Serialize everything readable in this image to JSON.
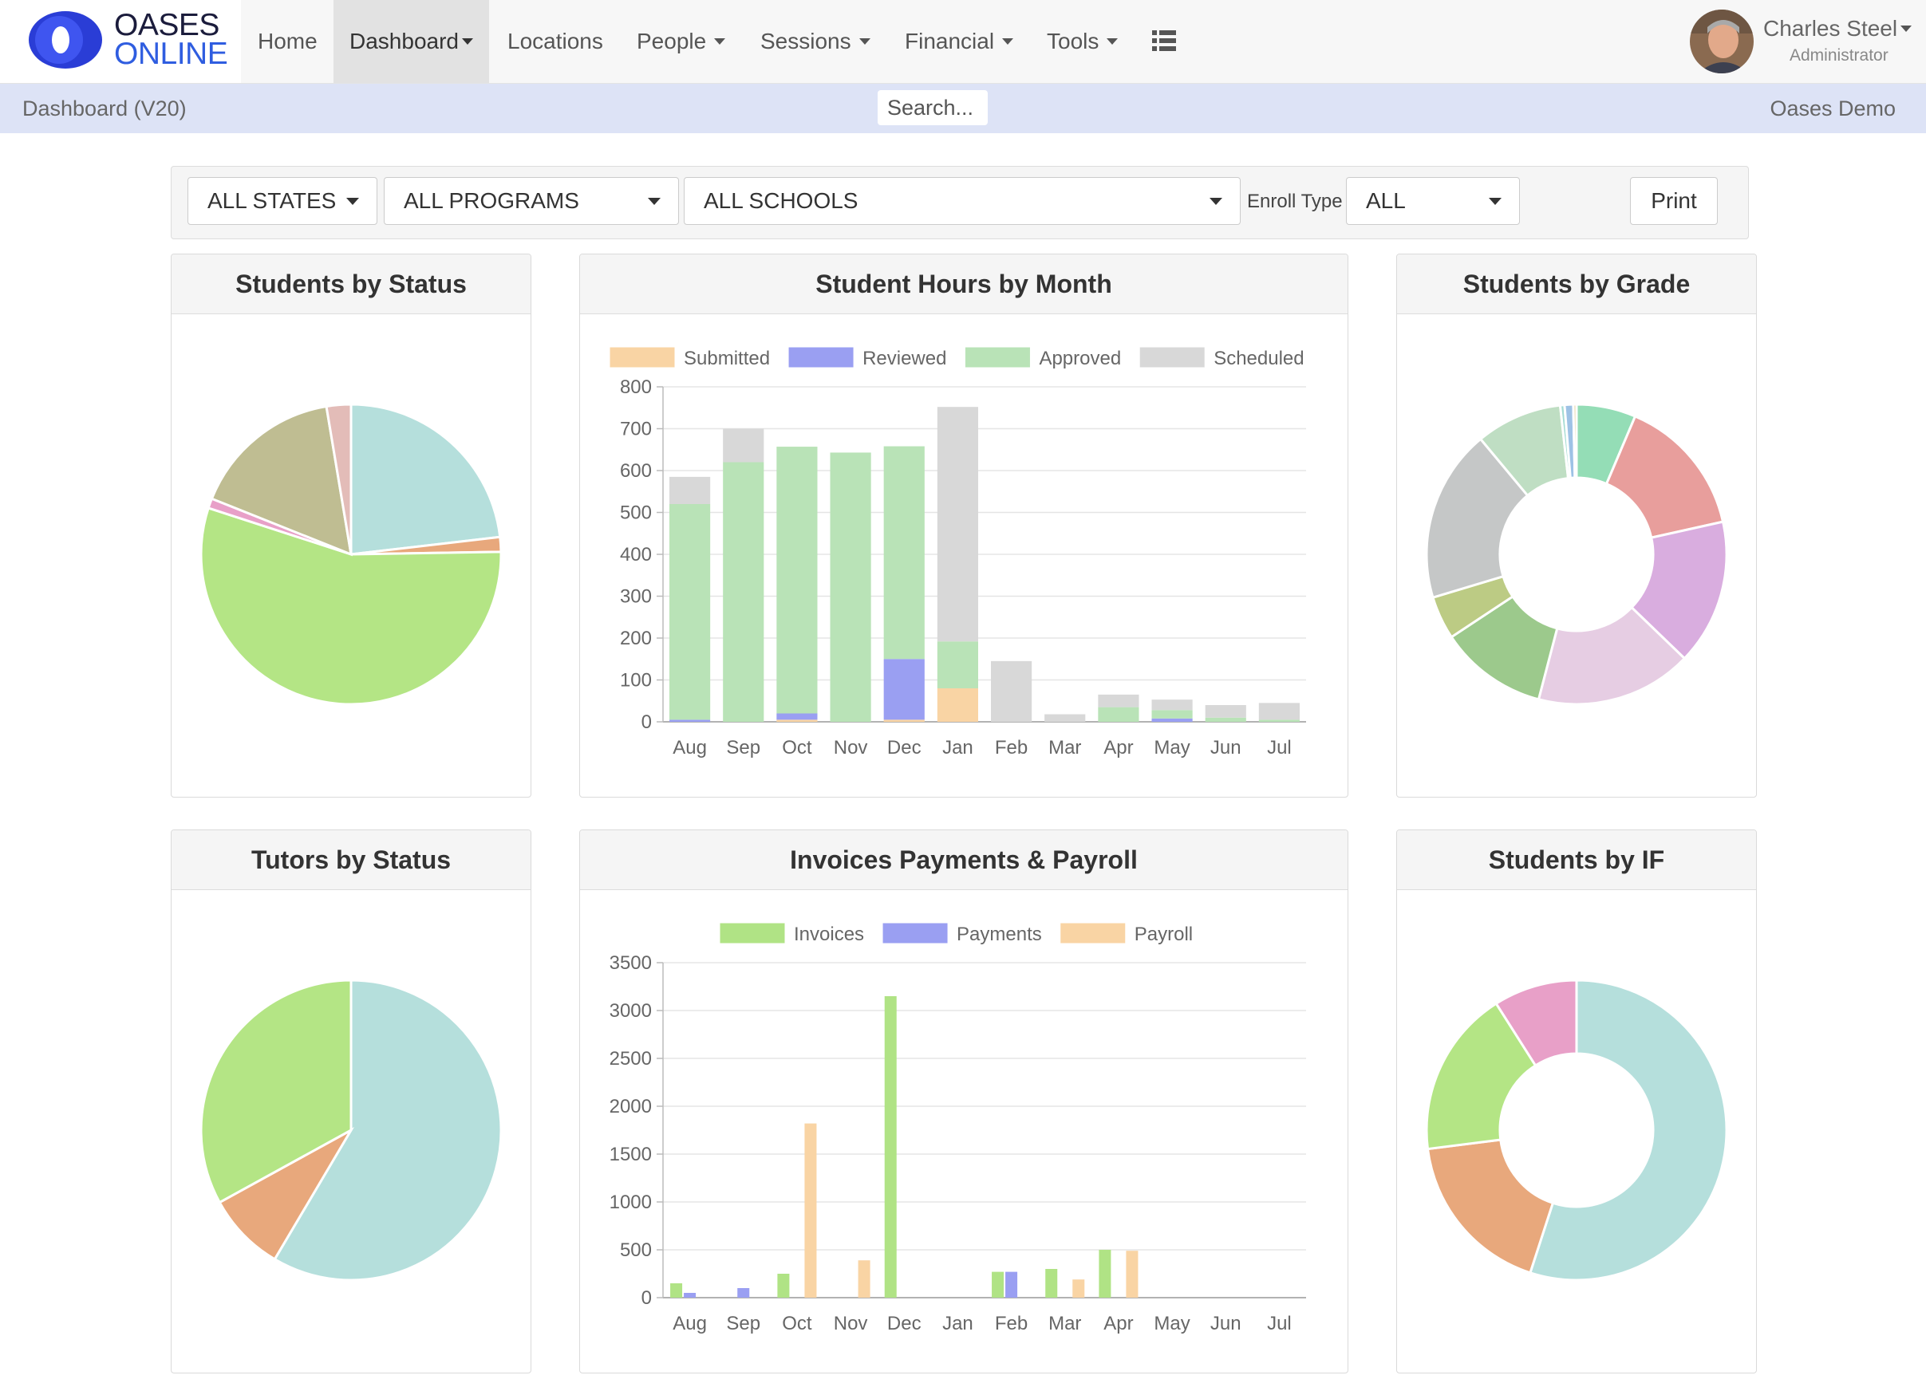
{
  "brand": {
    "line1": "OASES",
    "line2": "ONLINE"
  },
  "nav": {
    "home": "Home",
    "dashboard": "Dashboard",
    "locations": "Locations",
    "people": "People",
    "sessions": "Sessions",
    "financial": "Financial",
    "tools": "Tools",
    "list_icon": "list-icon"
  },
  "user": {
    "name": "Charles Steel",
    "role": "Administrator"
  },
  "subbar": {
    "title": "Dashboard (V20)",
    "search_placeholder": "Search...",
    "org": "Oases Demo"
  },
  "filters": {
    "states": "ALL STATES",
    "programs": "ALL PROGRAMS",
    "schools": "ALL SCHOOLS",
    "enroll_label": "Enroll Type",
    "enroll": "ALL",
    "print": "Print"
  },
  "panels": {
    "students_status": "Students by Status",
    "hours_month": "Student Hours by Month",
    "students_grade": "Students by Grade",
    "tutors_status": "Tutors by Status",
    "invoices": "Invoices Payments & Payroll",
    "students_if": "Students by IF"
  },
  "chart_data": [
    {
      "id": "students_status",
      "type": "pie",
      "values": [
        22.0,
        1.5,
        52.5,
        1.0,
        15.5,
        2.5
      ],
      "colors": [
        "#b5dfdc",
        "#e8a87c",
        "#b4e585",
        "#e8a0c8",
        "#bfbd92",
        "#e3bcb8"
      ]
    },
    {
      "id": "hours_month",
      "type": "bar",
      "stacked": true,
      "categories": [
        "Aug",
        "Sep",
        "Oct",
        "Nov",
        "Dec",
        "Jan",
        "Feb",
        "Mar",
        "Apr",
        "May",
        "Jun",
        "Jul"
      ],
      "ylim": [
        0,
        800
      ],
      "yticks": [
        0,
        100,
        200,
        300,
        400,
        500,
        600,
        700,
        800
      ],
      "series": [
        {
          "name": "Submitted",
          "color": "#f9d4a4",
          "values": [
            0,
            0,
            5,
            0,
            5,
            80,
            0,
            0,
            0,
            0,
            0,
            0
          ]
        },
        {
          "name": "Reviewed",
          "color": "#9a9ff2",
          "values": [
            5,
            0,
            15,
            0,
            145,
            0,
            0,
            0,
            0,
            8,
            0,
            0
          ]
        },
        {
          "name": "Approved",
          "color": "#b9e3b7",
          "values": [
            515,
            620,
            637,
            643,
            508,
            112,
            0,
            0,
            35,
            20,
            10,
            5
          ]
        },
        {
          "name": "Scheduled",
          "color": "#d8d8d8",
          "values": [
            65,
            80,
            0,
            0,
            0,
            560,
            145,
            18,
            30,
            25,
            30,
            40
          ]
        }
      ]
    },
    {
      "id": "students_grade",
      "type": "pie",
      "donut": true,
      "values": [
        5.5,
        13.0,
        13.5,
        14.5,
        10.0,
        4.0,
        16.0,
        8.0,
        0.4,
        0.8,
        0.3
      ],
      "colors": [
        "#94ddb6",
        "#e89e9c",
        "#d9addf",
        "#e6cde3",
        "#9cc98c",
        "#bccb84",
        "#c5c7c7",
        "#bfdec3",
        "#a4dbd3",
        "#9ec2e5",
        "#e6d6a8"
      ]
    },
    {
      "id": "tutors_status",
      "type": "pie",
      "values": [
        58.5,
        8.5,
        33.0
      ],
      "colors": [
        "#b5dfdc",
        "#e8a87c",
        "#b4e585"
      ]
    },
    {
      "id": "invoices",
      "type": "bar",
      "categories": [
        "Aug",
        "Sep",
        "Oct",
        "Nov",
        "Dec",
        "Jan",
        "Feb",
        "Mar",
        "Apr",
        "May",
        "Jun",
        "Jul"
      ],
      "ylim": [
        0,
        3500
      ],
      "yticks": [
        0,
        500,
        1000,
        1500,
        2000,
        2500,
        3000,
        3500
      ],
      "series": [
        {
          "name": "Invoices",
          "color": "#b0e385",
          "values": [
            150,
            0,
            250,
            0,
            3150,
            0,
            270,
            300,
            500,
            0,
            0,
            0
          ]
        },
        {
          "name": "Payments",
          "color": "#9a9ff2",
          "values": [
            50,
            100,
            0,
            0,
            0,
            0,
            270,
            0,
            0,
            0,
            0,
            0
          ]
        },
        {
          "name": "Payroll",
          "color": "#f9d4a4",
          "values": [
            0,
            0,
            1820,
            390,
            0,
            0,
            0,
            190,
            490,
            0,
            0,
            0
          ]
        }
      ]
    },
    {
      "id": "students_if",
      "type": "pie",
      "donut": true,
      "values": [
        55.0,
        18.0,
        18.0,
        9.0
      ],
      "colors": [
        "#b5dfdc",
        "#e8a87c",
        "#b4e585",
        "#e8a0c8"
      ]
    }
  ]
}
